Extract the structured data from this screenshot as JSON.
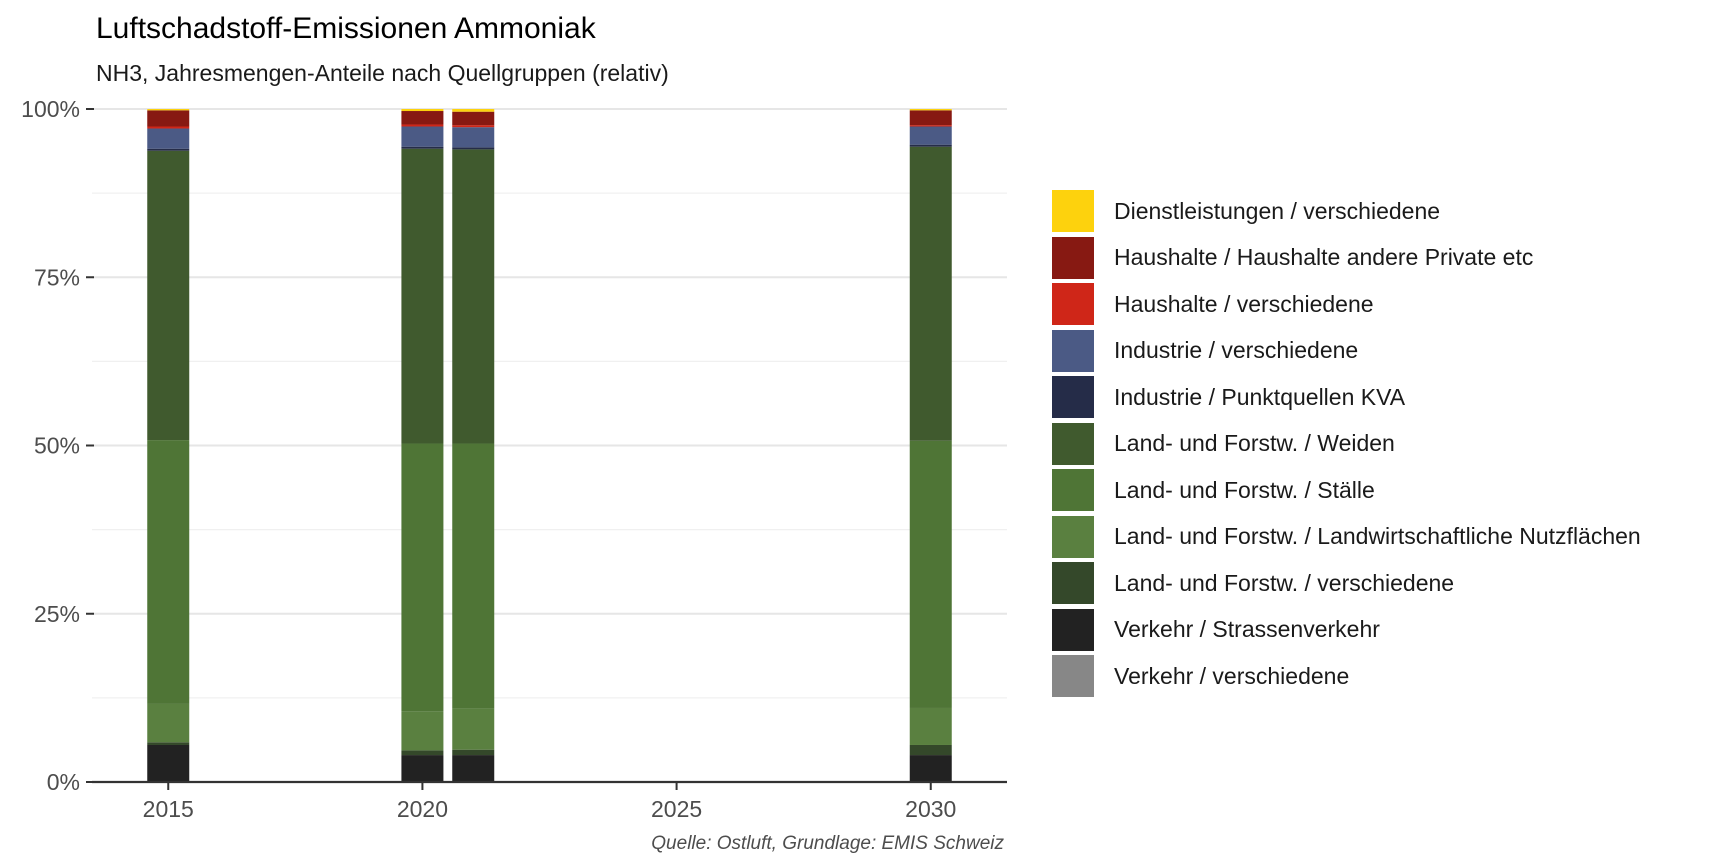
{
  "chart_data": {
    "type": "bar",
    "stacked": true,
    "normalized": true,
    "title": "Luftschadstoff-Emissionen Ammoniak",
    "subtitle": "NH3, Jahresmengen-Anteile nach Quellgruppen (relativ)",
    "caption": "Quelle: Ostluft, Grundlage: EMIS Schweiz",
    "xlabel": "",
    "ylabel": "",
    "x": [
      2015,
      2020,
      2021,
      2030
    ],
    "x_ticks": [
      "2015",
      "2020",
      "2025",
      "2030"
    ],
    "xlim": [
      2013.5,
      2031.5
    ],
    "y_ticks": [
      "0%",
      "25%",
      "50%",
      "75%",
      "100%"
    ],
    "ylim": [
      0,
      1
    ],
    "grid": true,
    "legend_position": "right",
    "series": [
      {
        "name": "Verkehr / verschiedene",
        "color": "#878787",
        "values": [
          0.0,
          0.0,
          0.0,
          0.0
        ]
      },
      {
        "name": "Verkehr / Strassenverkehr",
        "color": "#222222",
        "values": [
          0.055,
          0.04,
          0.04,
          0.04
        ]
      },
      {
        "name": "Land- und Forstw. / verschiedene",
        "color": "#34482a",
        "values": [
          0.004,
          0.007,
          0.008,
          0.015
        ]
      },
      {
        "name": "Land- und Forstw. / Landwirtschaftliche Nutzflächen",
        "color": "#5a8040",
        "values": [
          0.057,
          0.058,
          0.061,
          0.055
        ]
      },
      {
        "name": "Land- und Forstw. / Ställe",
        "color": "#4f7536",
        "values": [
          0.392,
          0.398,
          0.394,
          0.397
        ]
      },
      {
        "name": "Land- und Forstw. / Weiden",
        "color": "#405a2e",
        "values": [
          0.43,
          0.438,
          0.437,
          0.437
        ]
      },
      {
        "name": "Industrie / Punktquellen KVA",
        "color": "#252c48",
        "values": [
          0.003,
          0.003,
          0.003,
          0.003
        ]
      },
      {
        "name": "Industrie / verschiedene",
        "color": "#4b5a85",
        "values": [
          0.03,
          0.03,
          0.03,
          0.027
        ]
      },
      {
        "name": "Haushalte / verschiedene",
        "color": "#cf2618",
        "values": [
          0.003,
          0.003,
          0.003,
          0.002
        ]
      },
      {
        "name": "Haushalte / Haushalte andere Private etc",
        "color": "#871912",
        "values": [
          0.024,
          0.02,
          0.02,
          0.022
        ]
      },
      {
        "name": "Dienstleistungen / verschiedene",
        "color": "#fdd20d",
        "values": [
          0.002,
          0.003,
          0.004,
          0.002
        ]
      }
    ]
  }
}
